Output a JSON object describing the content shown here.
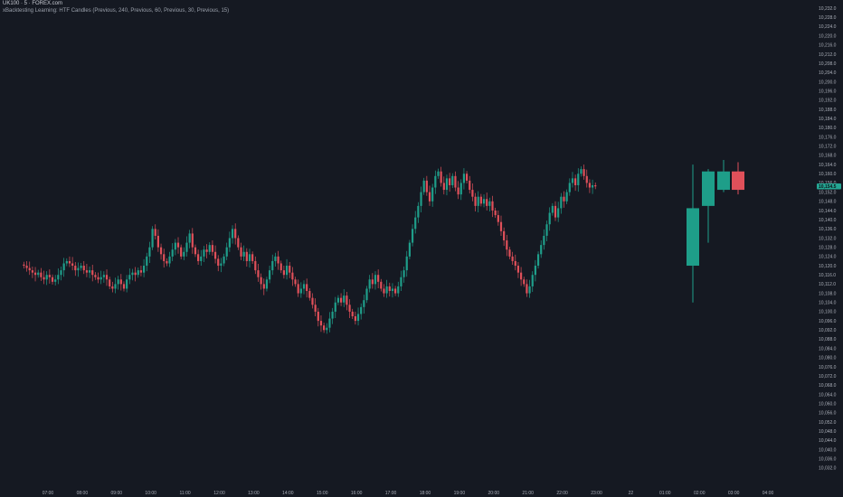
{
  "header": {
    "symbol_line": "UK100 · 5 · FOREX.com",
    "indicator_line": "xBacktesting Learning: HTF Candles (Previous, 240, Previous, 60, Previous, 30, Previous, 15)"
  },
  "colors": {
    "background": "#151922",
    "up": "#1f9e8a",
    "down": "#e0505a",
    "htf_up": "#1e9e89",
    "htf_down": "#e0505a",
    "price_tag": "#24a693",
    "axis_text": "#a9adb7"
  },
  "price_axis": {
    "labels": [
      "10,232.0",
      "10,228.0",
      "10,224.0",
      "10,220.0",
      "10,216.0",
      "10,212.0",
      "10,208.0",
      "10,204.0",
      "10,200.0",
      "10,196.0",
      "10,192.0",
      "10,188.0",
      "10,184.0",
      "10,180.0",
      "10,176.0",
      "10,172.0",
      "10,168.0",
      "10,164.0",
      "10,160.0",
      "10,156.0",
      "10,152.0",
      "10,148.0",
      "10,144.0",
      "10,140.0",
      "10,136.0",
      "10,132.0",
      "10,128.0",
      "10,124.0",
      "10,120.0",
      "10,116.0",
      "10,112.0",
      "10,108.0",
      "10,104.0",
      "10,100.0",
      "10,096.0",
      "10,092.0",
      "10,088.0",
      "10,084.0",
      "10,080.0",
      "10,076.0",
      "10,072.0",
      "10,068.0",
      "10,064.0",
      "10,060.0",
      "10,056.0",
      "10,052.0",
      "10,048.0",
      "10,044.0",
      "10,040.0",
      "10,036.0",
      "10,032.0"
    ],
    "current_price": "10,154.5"
  },
  "time_axis": {
    "labels": [
      "07:00",
      "08:00",
      "09:00",
      "10:00",
      "11:00",
      "12:00",
      "13:00",
      "14:00",
      "15:00",
      "16:00",
      "17:00",
      "18:00",
      "19:00",
      "20:00",
      "21:00",
      "22:00",
      "23:00",
      "22",
      "01:00",
      "02:00",
      "03:00",
      "04:00"
    ]
  },
  "chart_data": {
    "type": "candlestick",
    "ylim": [
      10030,
      10234
    ],
    "x_range_hours": [
      6.5,
      28.5
    ],
    "bar_interval_minutes": 5,
    "ltf_start_hour": 6.3,
    "ltf_closes": [
      10120,
      10119,
      10118,
      10117,
      10116,
      10117,
      10115,
      10114,
      10116,
      10115,
      10113,
      10114,
      10116,
      10118,
      10121,
      10122,
      10121,
      10120,
      10118,
      10119,
      10120,
      10118,
      10117,
      10118,
      10116,
      10115,
      10114,
      10115,
      10116,
      10114,
      10111,
      10110,
      10112,
      10114,
      10112,
      10110,
      10114,
      10116,
      10117,
      10116,
      10118,
      10117,
      10120,
      10124,
      10128,
      10136,
      10133,
      10128,
      10125,
      10122,
      10121,
      10124,
      10127,
      10130,
      10128,
      10124,
      10126,
      10130,
      10134,
      10128,
      10125,
      10122,
      10124,
      10127,
      10126,
      10129,
      10126,
      10123,
      10120,
      10121,
      10124,
      10128,
      10132,
      10136,
      10132,
      10128,
      10124,
      10126,
      10122,
      10125,
      10122,
      10118,
      10115,
      10112,
      10110,
      10114,
      10118,
      10122,
      10124,
      10121,
      10118,
      10116,
      10120,
      10117,
      10114,
      10112,
      10108,
      10110,
      10112,
      10109,
      10106,
      10103,
      10100,
      10096,
      10094,
      10092,
      10093,
      10097,
      10100,
      10104,
      10106,
      10104,
      10107,
      10103,
      10100,
      10098,
      10096,
      10099,
      10102,
      10105,
      10110,
      10114,
      10112,
      10116,
      10113,
      10110,
      10108,
      10111,
      10109,
      10110,
      10108,
      10111,
      10115,
      10118,
      10124,
      10130,
      10136,
      10141,
      10146,
      10152,
      10157,
      10152,
      10148,
      10154,
      10159,
      10161,
      10156,
      10153,
      10158,
      10155,
      10159,
      10154,
      10151,
      10156,
      10160,
      10157,
      10153,
      10150,
      10146,
      10150,
      10147,
      10149,
      10146,
      10148,
      10144,
      10142,
      10139,
      10135,
      10131,
      10127,
      10124,
      10122,
      10120,
      10117,
      10114,
      10112,
      10108,
      10111,
      10116,
      10120,
      10125,
      10129,
      10133,
      10138,
      10143,
      10146,
      10141,
      10145,
      10150,
      10148,
      10152,
      10156,
      10158,
      10155,
      10160,
      10162,
      10159,
      10156,
      10154,
      10155,
      10154.5
    ],
    "htf_candles": [
      {
        "open": 10120,
        "high": 10164,
        "low": 10104,
        "close": 10145
      },
      {
        "open": 10146,
        "high": 10162,
        "low": 10130,
        "close": 10161
      },
      {
        "open": 10153,
        "high": 10166,
        "low": 10152,
        "close": 10161
      },
      {
        "open": 10161,
        "high": 10165,
        "low": 10151,
        "close": 10153
      }
    ]
  }
}
